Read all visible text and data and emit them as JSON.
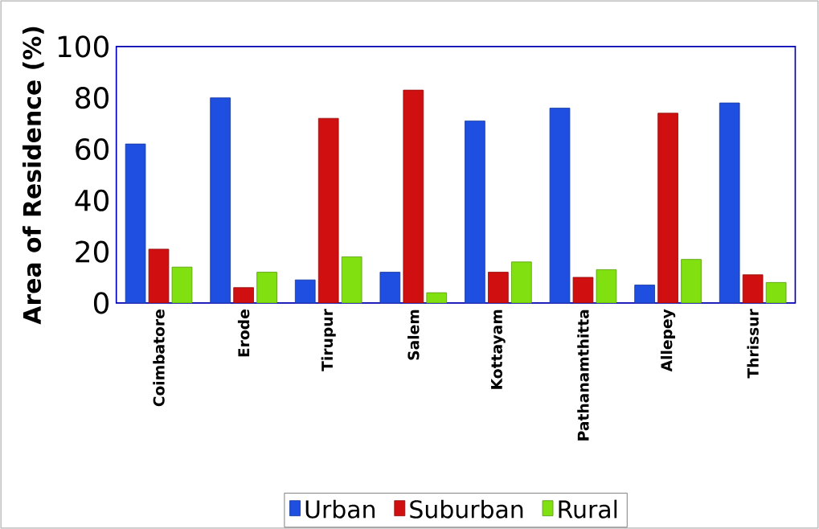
{
  "chart_data": {
    "type": "bar",
    "ylabel": "Area of Residence (%)",
    "categories": [
      "Coimbatore",
      "Erode",
      "Tirupur",
      "Salem",
      "Kottayam",
      "Pathanamthitta",
      "Allepey",
      "Thrissur"
    ],
    "series": [
      {
        "name": "Urban",
        "color": "#1f4fe0",
        "values": [
          62,
          80,
          9,
          12,
          71,
          76,
          7,
          78
        ]
      },
      {
        "name": "Suburban",
        "color": "#d01010",
        "values": [
          21,
          6,
          72,
          83,
          12,
          10,
          74,
          11
        ]
      },
      {
        "name": "Rural",
        "color": "#80e010",
        "values": [
          14,
          12,
          18,
          4,
          16,
          13,
          17,
          8
        ]
      }
    ],
    "ylim": [
      0,
      100
    ],
    "yticks": [
      0,
      20,
      40,
      60,
      80,
      100
    ],
    "grid": false,
    "legend": "bottom"
  }
}
